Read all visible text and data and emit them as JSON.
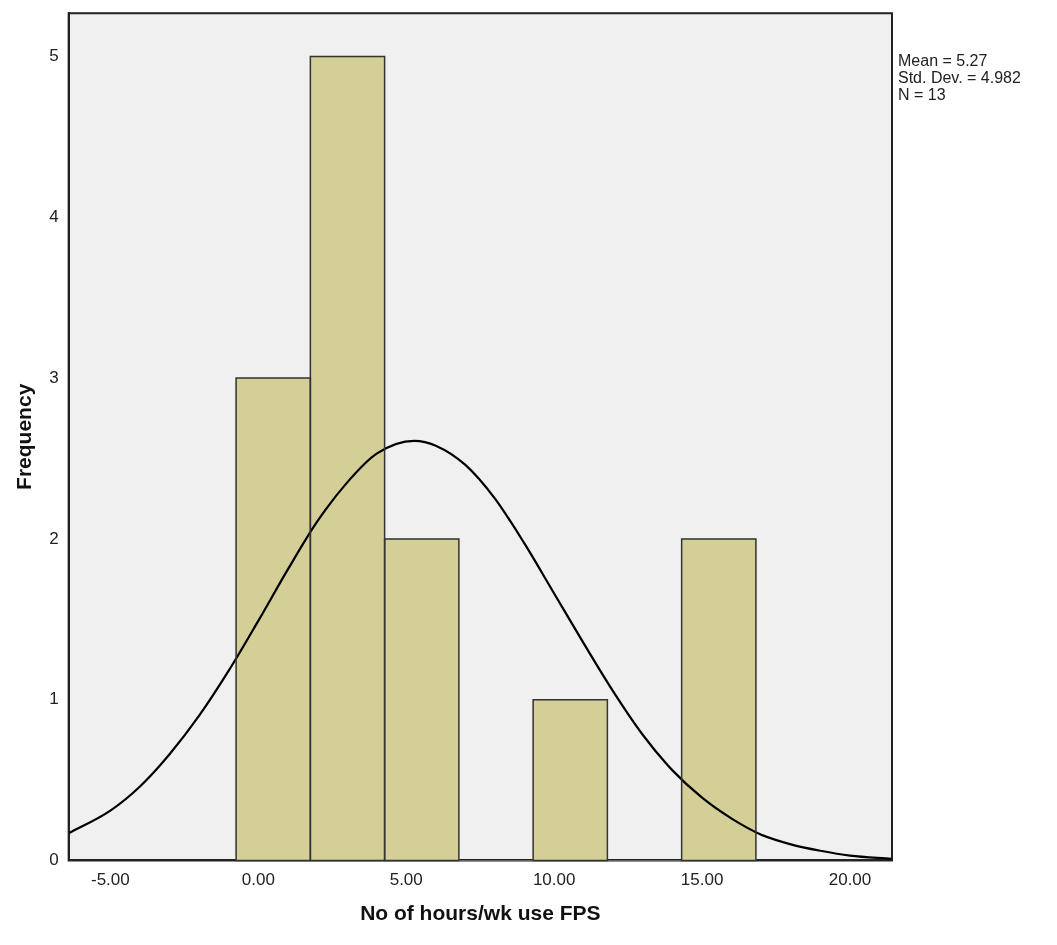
{
  "chart_data": {
    "type": "histogram",
    "xlabel": "No of hours/wk use FPS",
    "ylabel": "Frequency",
    "bins": [
      -0.75,
      1.76,
      4.27,
      6.78,
      9.29,
      11.8,
      14.31,
      16.82
    ],
    "values": [
      3,
      5,
      2,
      0,
      1,
      0,
      2
    ],
    "color": "#d3cf97",
    "series": [
      {
        "type": "line",
        "color": "#000000",
        "x": [
          -6.4,
          -5,
          -4,
          -3,
          -2,
          -1,
          0,
          1,
          2,
          3,
          4,
          5.27,
          6,
          7,
          8,
          9,
          10,
          11,
          12,
          13,
          14,
          15,
          16,
          17,
          18,
          19,
          20,
          21.4
        ],
        "values": [
          0.17,
          0.31,
          0.46,
          0.66,
          0.9,
          1.18,
          1.49,
          1.81,
          2.11,
          2.35,
          2.53,
          2.61,
          2.58,
          2.46,
          2.25,
          1.97,
          1.66,
          1.35,
          1.05,
          0.78,
          0.56,
          0.39,
          0.26,
          0.16,
          0.1,
          0.06,
          0.03,
          0.01
        ]
      }
    ],
    "xlim": [
      -6.41,
      21.42
    ],
    "xticks": [
      {
        "value": -5,
        "label": "-5.00"
      },
      {
        "value": 0,
        "label": "0.00"
      },
      {
        "value": 5,
        "label": "5.00"
      },
      {
        "value": 10,
        "label": "10.00"
      },
      {
        "value": 15,
        "label": "15.00"
      },
      {
        "value": 20,
        "label": "20.00"
      }
    ],
    "ylim": [
      0,
      5.27
    ],
    "yticks": [
      0,
      1,
      2,
      3,
      4,
      5
    ],
    "annotations": [
      "Mean = 5.27",
      "Std. Dev. = 4.982",
      "N = 13"
    ],
    "grid": false,
    "legend": false,
    "marker": "none"
  }
}
